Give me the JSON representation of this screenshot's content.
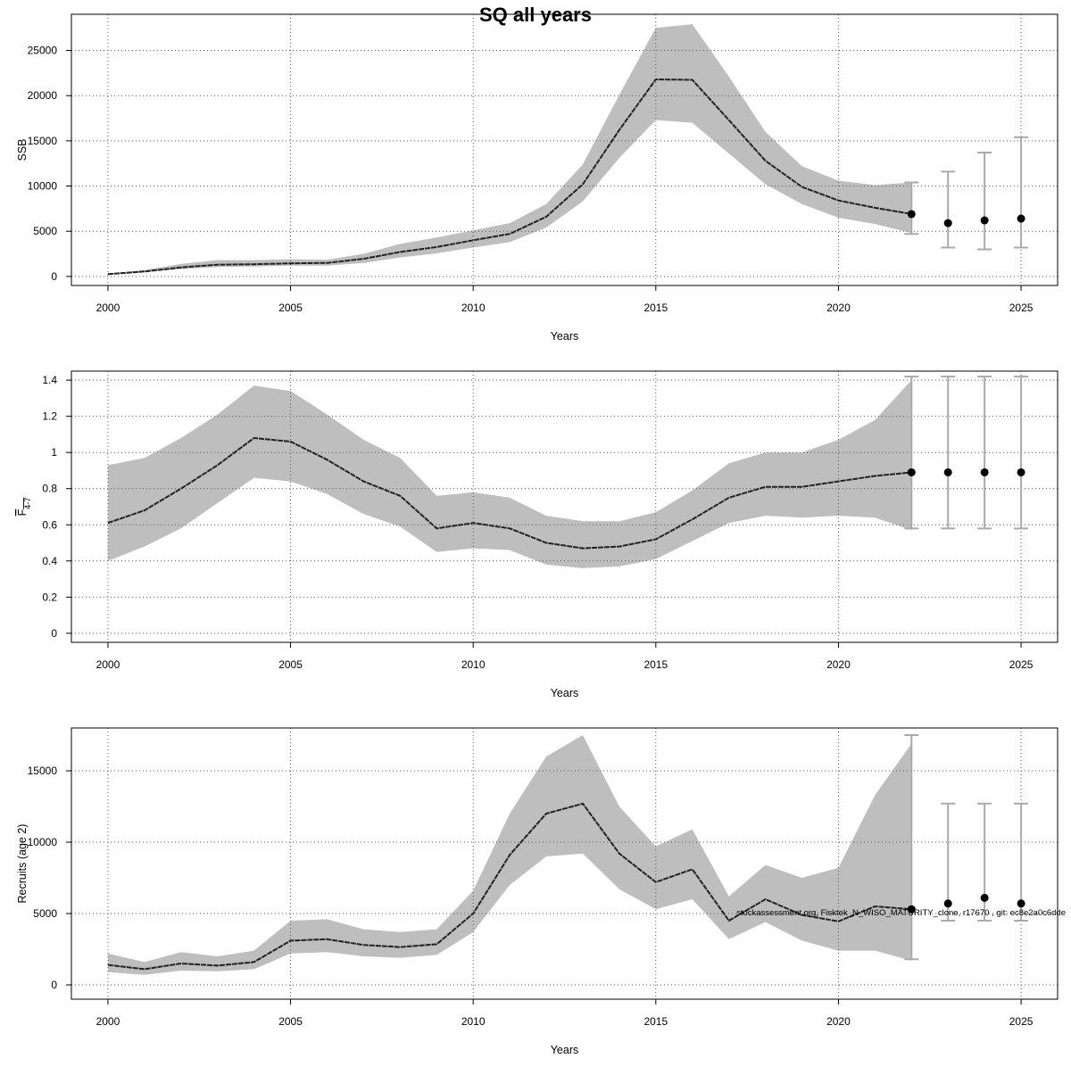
{
  "title": "SQ all years",
  "footnote": "stockassessment.org, Fisktek_N_WISO_MATURITY_clone, r17670 , git: ec8e2a0c6dde",
  "colors": {
    "band": "#bebebe",
    "line": "#222222",
    "errorbar": "#aaaaaa",
    "grid": "#555555",
    "frame": "#000000",
    "point": "#000000"
  },
  "chart_data": [
    {
      "type": "line",
      "xlabel": "Years",
      "ylabel": "SSB",
      "xlim": [
        1999,
        2026
      ],
      "ylim": [
        -1000,
        29000
      ],
      "x_ticks": [
        2000,
        2005,
        2010,
        2015,
        2020,
        2025
      ],
      "y_ticks": [
        0,
        5000,
        10000,
        15000,
        20000,
        25000
      ],
      "grid": true,
      "x": [
        2000,
        2001,
        2002,
        2003,
        2004,
        2005,
        2006,
        2007,
        2008,
        2009,
        2010,
        2011,
        2012,
        2013,
        2014,
        2015,
        2016,
        2017,
        2018,
        2019,
        2020,
        2021,
        2022
      ],
      "estimate": [
        250,
        550,
        1000,
        1300,
        1350,
        1450,
        1500,
        1950,
        2700,
        3250,
        4000,
        4700,
        6600,
        10200,
        16200,
        21800,
        21750,
        17300,
        12800,
        9900,
        8400,
        7600,
        6900
      ],
      "lower": [
        200,
        450,
        800,
        1050,
        1100,
        1200,
        1200,
        1500,
        2100,
        2550,
        3200,
        3800,
        5400,
        8300,
        13100,
        17300,
        17000,
        13600,
        10200,
        8000,
        6500,
        5800,
        4800
      ],
      "upper": [
        310,
        700,
        1400,
        1800,
        1800,
        1900,
        1850,
        2500,
        3600,
        4300,
        5100,
        5900,
        8000,
        12400,
        20100,
        27500,
        27900,
        22100,
        16000,
        12200,
        10600,
        10100,
        10400
      ],
      "forecast": [
        {
          "year": 2022,
          "value": 6900,
          "low": 4700,
          "high": 10400
        },
        {
          "year": 2023,
          "value": 5900,
          "low": 3200,
          "high": 11600
        },
        {
          "year": 2024,
          "value": 6200,
          "low": 3000,
          "high": 13700
        },
        {
          "year": 2025,
          "value": 6400,
          "low": 3200,
          "high": 15400
        }
      ]
    },
    {
      "type": "line",
      "xlabel": "Years",
      "ylabel": "F",
      "ylabel_sub": "4-7",
      "xlim": [
        1999,
        2026
      ],
      "ylim": [
        -0.05,
        1.45
      ],
      "x_ticks": [
        2000,
        2005,
        2010,
        2015,
        2020,
        2025
      ],
      "y_ticks": [
        0.0,
        0.2,
        0.4,
        0.6,
        0.8,
        1.0,
        1.2,
        1.4
      ],
      "grid": true,
      "x": [
        2000,
        2001,
        2002,
        2003,
        2004,
        2005,
        2006,
        2007,
        2008,
        2009,
        2010,
        2011,
        2012,
        2013,
        2014,
        2015,
        2016,
        2017,
        2018,
        2019,
        2020,
        2021,
        2022
      ],
      "estimate": [
        0.61,
        0.68,
        0.8,
        0.93,
        1.08,
        1.06,
        0.96,
        0.84,
        0.76,
        0.58,
        0.61,
        0.58,
        0.5,
        0.47,
        0.48,
        0.52,
        0.63,
        0.75,
        0.81,
        0.81,
        0.84,
        0.87,
        0.89
      ],
      "lower": [
        0.4,
        0.48,
        0.58,
        0.72,
        0.86,
        0.84,
        0.77,
        0.66,
        0.59,
        0.45,
        0.47,
        0.46,
        0.38,
        0.36,
        0.37,
        0.41,
        0.51,
        0.61,
        0.65,
        0.64,
        0.65,
        0.64,
        0.57
      ],
      "upper": [
        0.93,
        0.97,
        1.08,
        1.21,
        1.37,
        1.34,
        1.21,
        1.07,
        0.97,
        0.76,
        0.78,
        0.75,
        0.65,
        0.62,
        0.62,
        0.67,
        0.79,
        0.94,
        1.0,
        1.0,
        1.07,
        1.18,
        1.4
      ],
      "forecast": [
        {
          "year": 2022,
          "value": 0.89,
          "low": 0.58,
          "high": 1.42
        },
        {
          "year": 2023,
          "value": 0.89,
          "low": 0.58,
          "high": 1.42
        },
        {
          "year": 2024,
          "value": 0.89,
          "low": 0.58,
          "high": 1.42
        },
        {
          "year": 2025,
          "value": 0.89,
          "low": 0.58,
          "high": 1.42
        }
      ]
    },
    {
      "type": "line",
      "xlabel": "Years",
      "ylabel": "Recruits (age 2)",
      "xlim": [
        1999,
        2026
      ],
      "ylim": [
        -1000,
        18000
      ],
      "x_ticks": [
        2000,
        2005,
        2010,
        2015,
        2020,
        2025
      ],
      "y_ticks": [
        0,
        5000,
        10000,
        15000
      ],
      "grid": true,
      "x": [
        2000,
        2001,
        2002,
        2003,
        2004,
        2005,
        2006,
        2007,
        2008,
        2009,
        2010,
        2011,
        2012,
        2013,
        2014,
        2015,
        2016,
        2017,
        2018,
        2019,
        2020,
        2021,
        2022
      ],
      "estimate": [
        1400,
        1100,
        1500,
        1350,
        1600,
        3100,
        3200,
        2800,
        2650,
        2850,
        5000,
        9100,
        12000,
        12700,
        9200,
        7200,
        8100,
        4500,
        6000,
        4900,
        4450,
        5500,
        5300
      ],
      "lower": [
        900,
        700,
        1000,
        950,
        1100,
        2200,
        2300,
        2000,
        1900,
        2100,
        3700,
        7000,
        9000,
        9200,
        6700,
        5300,
        6000,
        3200,
        4400,
        3100,
        2400,
        2400,
        1700
      ],
      "upper": [
        2200,
        1600,
        2300,
        2000,
        2400,
        4500,
        4600,
        3900,
        3700,
        3900,
        6600,
        12000,
        16000,
        17500,
        12500,
        9700,
        10900,
        6200,
        8400,
        7500,
        8200,
        13300,
        16900
      ],
      "forecast": [
        {
          "year": 2022,
          "value": 5300,
          "low": 1800,
          "high": 17500
        },
        {
          "year": 2023,
          "value": 5700,
          "low": 4500,
          "high": 12700
        },
        {
          "year": 2024,
          "value": 6100,
          "low": 4500,
          "high": 12700
        },
        {
          "year": 2025,
          "value": 5700,
          "low": 4500,
          "high": 12700
        }
      ]
    }
  ]
}
